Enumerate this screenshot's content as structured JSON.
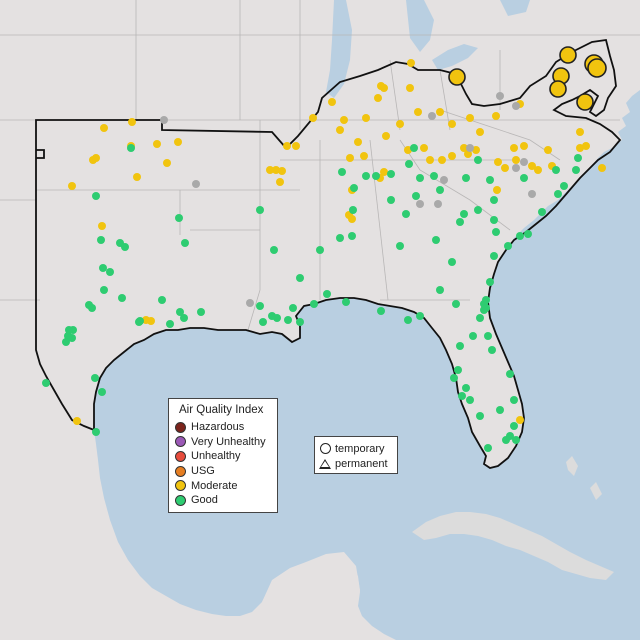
{
  "colors": {
    "water": "#b9cfe1",
    "land": "#e4e1e1",
    "border": "#b8b6b6",
    "region_outline": "#111111",
    "cuba_land": "#dcdcdc",
    "good": "#2ecc71",
    "moderate": "#f1c40f",
    "usg": "#e67e22",
    "unhealthy": "#e74c3c",
    "very_unhealthy": "#9b59b6",
    "hazardous": "#7b241c",
    "no_data": "#a9a9a9"
  },
  "aqi_legend": {
    "title": "Air Quality Index",
    "items": [
      {
        "label": "Hazardous",
        "color": "#7b241c"
      },
      {
        "label": "Very Unhealthy",
        "color": "#9b59b6"
      },
      {
        "label": "Unhealthy",
        "color": "#e74c3c"
      },
      {
        "label": "USG",
        "color": "#e67e22"
      },
      {
        "label": "Moderate",
        "color": "#f1c40f"
      },
      {
        "label": "Good",
        "color": "#2ecc71"
      }
    ]
  },
  "monitor_legend": {
    "temporary": "temporary",
    "permanent": "permanent"
  }
}
